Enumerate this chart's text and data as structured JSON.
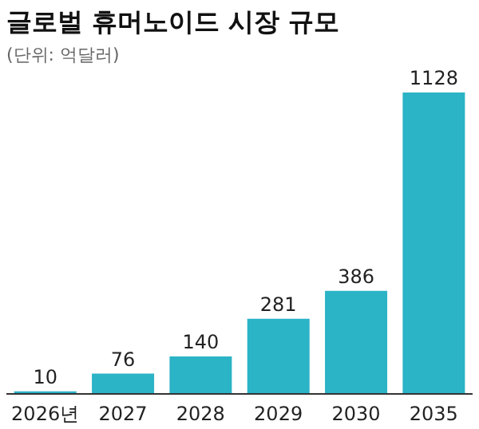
{
  "chart_data": {
    "type": "bar",
    "title": "글로벌 휴머노이드 시장 규모",
    "subtitle": "(단위: 억달러)",
    "categories": [
      "2026년",
      "2027",
      "2028",
      "2029",
      "2030",
      "2035"
    ],
    "values": [
      10,
      76,
      140,
      281,
      386,
      1128
    ],
    "color": "#2bb3c6",
    "data_labels": true
  }
}
